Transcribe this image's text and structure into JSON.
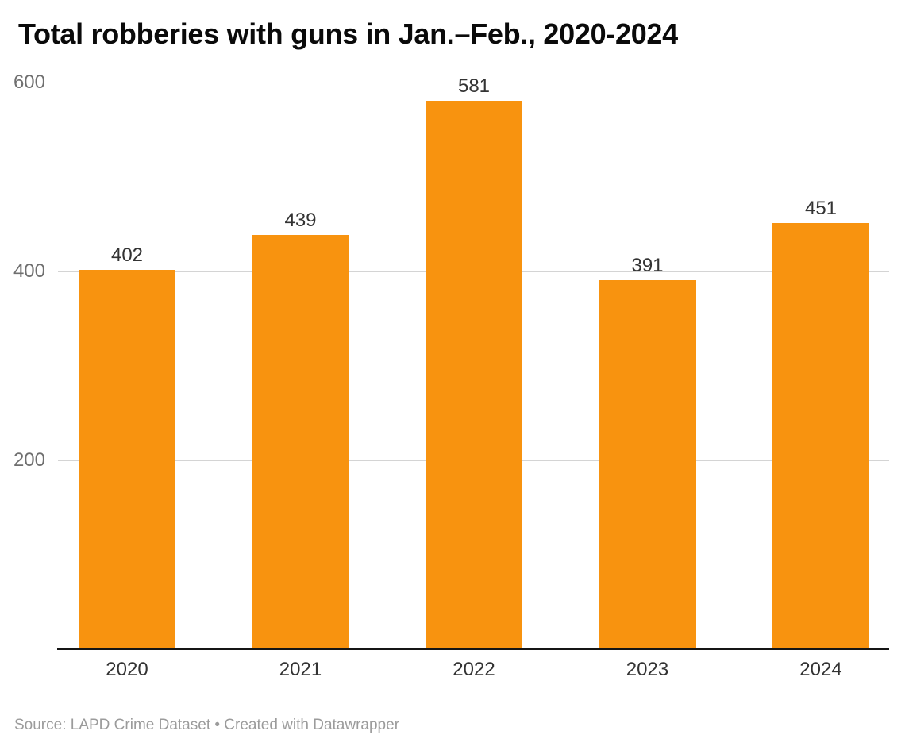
{
  "chart_data": {
    "type": "bar",
    "title": "Total robberies with guns in Jan.–Feb., 2020-2024",
    "categories": [
      "2020",
      "2021",
      "2022",
      "2023",
      "2024"
    ],
    "values": [
      402,
      439,
      581,
      391,
      451
    ],
    "value_labels": [
      "402",
      "439",
      "581",
      "391",
      "451"
    ],
    "xlabel": "",
    "ylabel": "",
    "ylim": [
      0,
      600
    ],
    "y_ticks": [
      600,
      400,
      200
    ],
    "grid": true,
    "legend": false,
    "source": "Source: LAPD Crime Dataset • Created with Datawrapper"
  },
  "style": {
    "bar_color": "#F8930F",
    "grid_color": "#D4D4D4",
    "baseline_color": "#151515",
    "title_color": "#0A0A0A",
    "value_label_color": "#333333",
    "x_label_color": "#333333",
    "y_tick_color": "#6F6F6F",
    "source_color": "#9B9B9B",
    "background": "#FFFFFF"
  }
}
